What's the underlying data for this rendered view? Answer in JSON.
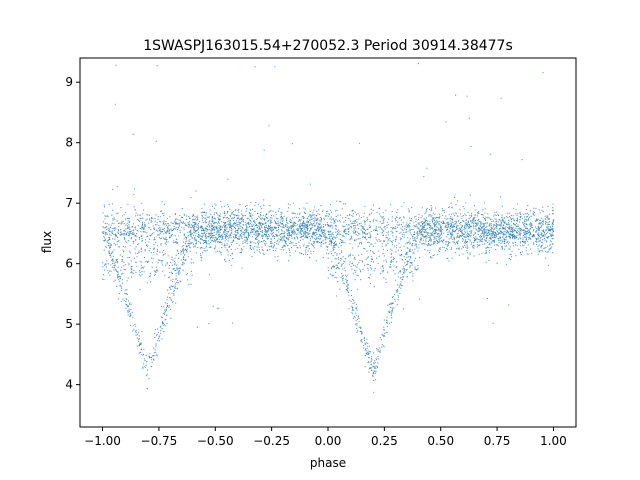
{
  "chart_data": {
    "type": "scatter",
    "title": "1SWASPJ163015.54+270052.3 Period 30914.38477s",
    "xlabel": "phase",
    "ylabel": "flux",
    "xlim": [
      -1.1,
      1.1
    ],
    "ylim": [
      3.3,
      9.4
    ],
    "xticks": [
      -1.0,
      -0.75,
      -0.5,
      -0.25,
      0.0,
      0.25,
      0.5,
      0.75,
      1.0
    ],
    "xtick_labels": [
      "−1.00",
      "−0.75",
      "−0.50",
      "−0.25",
      "0.00",
      "0.25",
      "0.50",
      "0.75",
      "1.00"
    ],
    "yticks": [
      4,
      5,
      6,
      7,
      8,
      9
    ],
    "ytick_labels": [
      "4",
      "5",
      "6",
      "7",
      "8",
      "9"
    ],
    "grid": false,
    "point_color": "#1f77b4",
    "light_curve": {
      "phase_range": [
        -1.0,
        1.0
      ],
      "baseline_flux": 6.55,
      "scatter": 0.18,
      "primary_eclipse_phases": [
        -0.8,
        0.2
      ],
      "primary_eclipse_min_flux": 4.2,
      "eclipse_half_width": 0.13,
      "secondary_branch_flux": 5.95,
      "sample_points": [
        {
          "x": -1.0,
          "y": 6.5
        },
        {
          "x": -0.97,
          "y": 5.6
        },
        {
          "x": -0.9,
          "y": 4.9
        },
        {
          "x": -0.8,
          "y": 4.2
        },
        {
          "x": -0.72,
          "y": 5.0
        },
        {
          "x": -0.65,
          "y": 6.0
        },
        {
          "x": -0.5,
          "y": 6.55
        },
        {
          "x": -0.25,
          "y": 6.55
        },
        {
          "x": 0.0,
          "y": 6.5
        },
        {
          "x": 0.1,
          "y": 5.0
        },
        {
          "x": 0.2,
          "y": 4.2
        },
        {
          "x": 0.3,
          "y": 5.0
        },
        {
          "x": 0.35,
          "y": 6.0
        },
        {
          "x": 0.5,
          "y": 6.55
        },
        {
          "x": 0.75,
          "y": 6.55
        },
        {
          "x": 1.0,
          "y": 6.45
        }
      ]
    }
  }
}
